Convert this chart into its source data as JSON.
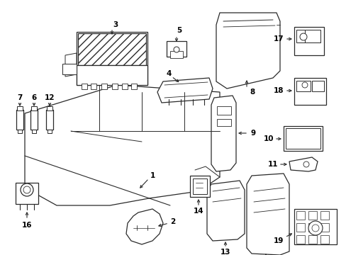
{
  "background_color": "#ffffff",
  "line_color": "#2a2a2a",
  "text_color": "#000000",
  "fig_w": 4.89,
  "fig_h": 3.6,
  "dpi": 100
}
